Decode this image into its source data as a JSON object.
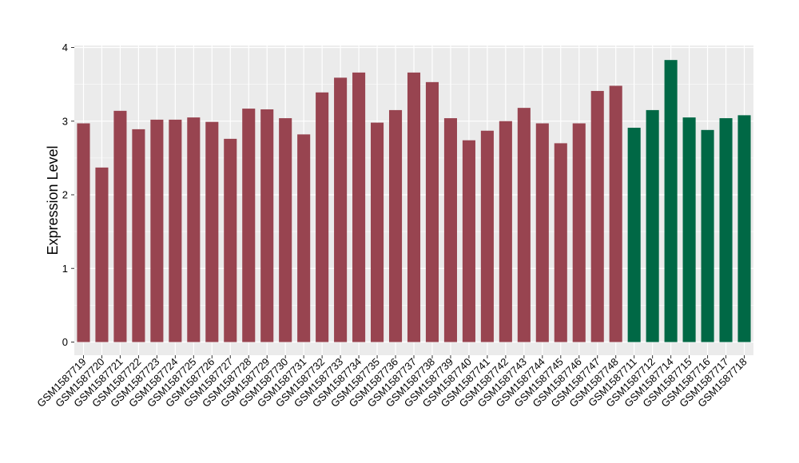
{
  "chart_data": {
    "type": "bar",
    "title": "",
    "xlabel": "",
    "ylabel": "Expression Level",
    "ylim": [
      0,
      4
    ],
    "yticks": [
      0,
      1,
      2,
      3,
      4
    ],
    "grid": true,
    "legend": "none",
    "panel_background": "#EBEBEB",
    "categories": [
      "GSM1587719",
      "GSM1587720",
      "GSM1587721",
      "GSM1587722",
      "GSM1587723",
      "GSM1587724",
      "GSM1587725",
      "GSM1587726",
      "GSM1587727",
      "GSM1587728",
      "GSM1587729",
      "GSM1587730",
      "GSM1587731",
      "GSM1587732",
      "GSM1587733",
      "GSM1587734",
      "GSM1587735",
      "GSM1587736",
      "GSM1587737",
      "GSM1587738",
      "GSM1587739",
      "GSM1587740",
      "GSM1587741",
      "GSM1587742",
      "GSM1587743",
      "GSM1587744",
      "GSM1587745",
      "GSM1587746",
      "GSM1587747",
      "GSM1587748",
      "GSM1587711",
      "GSM1587712",
      "GSM1587714",
      "GSM1587715",
      "GSM1587716",
      "GSM1587717",
      "GSM1587718"
    ],
    "values": [
      2.97,
      2.37,
      3.14,
      2.89,
      3.02,
      3.02,
      3.05,
      2.99,
      2.76,
      3.17,
      3.16,
      3.04,
      2.82,
      3.39,
      3.59,
      3.66,
      2.98,
      3.15,
      3.66,
      3.53,
      3.04,
      2.74,
      2.87,
      3.0,
      3.18,
      2.97,
      2.7,
      2.97,
      3.41,
      3.48,
      2.91,
      3.15,
      3.83,
      3.05,
      2.88,
      3.04,
      3.08
    ],
    "group": [
      "a",
      "a",
      "a",
      "a",
      "a",
      "a",
      "a",
      "a",
      "a",
      "a",
      "a",
      "a",
      "a",
      "a",
      "a",
      "a",
      "a",
      "a",
      "a",
      "a",
      "a",
      "a",
      "a",
      "a",
      "a",
      "a",
      "a",
      "a",
      "a",
      "a",
      "b",
      "b",
      "b",
      "b",
      "b",
      "b",
      "b"
    ],
    "colors": {
      "a": "#984450",
      "b": "#006845"
    }
  }
}
